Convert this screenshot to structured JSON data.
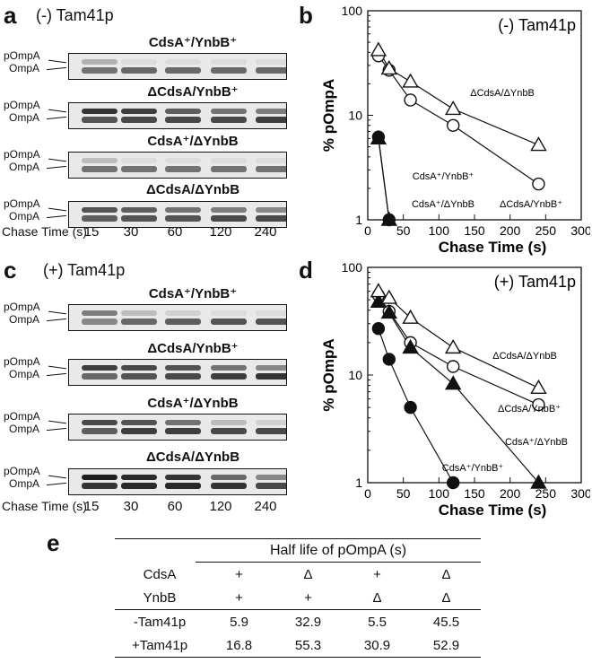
{
  "panels": {
    "a": {
      "letter": "a",
      "condition": "(-) Tam41p"
    },
    "b": {
      "letter": "b",
      "condition": "(-) Tam41p"
    },
    "c": {
      "letter": "c",
      "condition": "(+) Tam41p"
    },
    "d": {
      "letter": "d",
      "condition": "(+) Tam41p"
    },
    "e": {
      "letter": "e"
    }
  },
  "blots": {
    "lane_labels": {
      "top": "pOmpA",
      "bottom": "OmpA"
    },
    "chase_label": "Chase Time (s)",
    "times": [
      "15",
      "30",
      "60",
      "120",
      "240"
    ],
    "minus_tam41p": [
      {
        "title": "CdsA⁺/YnbB⁺",
        "band_intensity": {
          "pOmpA": [
            0.25,
            0.05,
            0.05,
            0.05,
            0.05
          ],
          "OmpA": [
            0.55,
            0.6,
            0.6,
            0.6,
            0.6
          ]
        }
      },
      {
        "title": "ΔCdsA/YnbB⁺",
        "band_intensity": {
          "pOmpA": [
            0.85,
            0.8,
            0.65,
            0.55,
            0.5
          ],
          "OmpA": [
            0.7,
            0.75,
            0.75,
            0.75,
            0.8
          ]
        }
      },
      {
        "title": "CdsA⁺/ΔYnbB",
        "band_intensity": {
          "pOmpA": [
            0.2,
            0.05,
            0.05,
            0.05,
            0.05
          ],
          "OmpA": [
            0.55,
            0.55,
            0.55,
            0.55,
            0.55
          ]
        }
      },
      {
        "title": "ΔCdsA/ΔYnbB",
        "band_intensity": {
          "pOmpA": [
            0.7,
            0.65,
            0.55,
            0.5,
            0.45
          ],
          "OmpA": [
            0.65,
            0.7,
            0.7,
            0.75,
            0.75
          ]
        }
      }
    ],
    "plus_tam41p": [
      {
        "title": "CdsA⁺/YnbB⁺",
        "band_intensity": {
          "pOmpA": [
            0.5,
            0.2,
            0.1,
            0.05,
            0.05
          ],
          "OmpA": [
            0.45,
            0.6,
            0.65,
            0.7,
            0.7
          ]
        }
      },
      {
        "title": "ΔCdsA/YnbB⁺",
        "band_intensity": {
          "pOmpA": [
            0.8,
            0.75,
            0.7,
            0.55,
            0.45
          ],
          "OmpA": [
            0.6,
            0.7,
            0.75,
            0.8,
            0.85
          ]
        }
      },
      {
        "title": "CdsA⁺/ΔYnbB",
        "band_intensity": {
          "pOmpA": [
            0.75,
            0.7,
            0.55,
            0.2,
            0.1
          ],
          "OmpA": [
            0.65,
            0.8,
            0.8,
            0.75,
            0.75
          ]
        }
      },
      {
        "title": "ΔCdsA/ΔYnbB",
        "band_intensity": {
          "pOmpA": [
            0.95,
            0.9,
            0.85,
            0.6,
            0.45
          ],
          "OmpA": [
            0.85,
            0.9,
            0.9,
            0.85,
            0.75
          ]
        }
      }
    ]
  },
  "chart_data": [
    {
      "type": "line",
      "panel": "b",
      "title": "(-) Tam41p",
      "xlabel": "Chase Time (s)",
      "ylabel": "% pOmpA",
      "xlim": [
        0,
        300
      ],
      "ylim": [
        1,
        100
      ],
      "yscale": "log",
      "xticks": [
        "0",
        "50",
        "100",
        "150",
        "200",
        "250",
        "300"
      ],
      "yticks": [
        "1",
        "10",
        "100"
      ],
      "series": [
        {
          "name": "CdsA⁺/YnbB⁺",
          "marker": "filled-circle",
          "x": [
            15,
            30
          ],
          "y": [
            6.2,
            1.0
          ]
        },
        {
          "name": "ΔCdsA/YnbB⁺",
          "marker": "open-circle",
          "x": [
            15,
            30,
            60,
            120,
            240
          ],
          "y": [
            37,
            27,
            14,
            8,
            2.2
          ]
        },
        {
          "name": "CdsA⁺/ΔYnbB",
          "marker": "filled-triangle",
          "x": [
            15,
            30
          ],
          "y": [
            6.0,
            1.0
          ]
        },
        {
          "name": "ΔCdsA/ΔYnbB",
          "marker": "open-triangle",
          "x": [
            15,
            30,
            60,
            120,
            240
          ],
          "y": [
            42,
            28,
            21,
            11.5,
            5.2
          ]
        }
      ],
      "annotations": [
        {
          "text": "ΔCdsA/ΔYnbB"
        },
        {
          "text": "CdsA⁺/YnbB⁺"
        },
        {
          "text": "CdsA⁺/ΔYnbB"
        },
        {
          "text": "ΔCdsA/YnbB⁺"
        }
      ]
    },
    {
      "type": "line",
      "panel": "d",
      "title": "(+) Tam41p",
      "xlabel": "Chase Time (s)",
      "ylabel": "% pOmpA",
      "xlim": [
        0,
        300
      ],
      "ylim": [
        1,
        100
      ],
      "yscale": "log",
      "xticks": [
        "0",
        "50",
        "100",
        "150",
        "200",
        "250",
        "300"
      ],
      "yticks": [
        "1",
        "10",
        "100"
      ],
      "series": [
        {
          "name": "CdsA⁺/YnbB⁺",
          "marker": "filled-circle",
          "x": [
            15,
            30,
            60,
            120
          ],
          "y": [
            27,
            14,
            5,
            1.0
          ]
        },
        {
          "name": "ΔCdsA/YnbB⁺",
          "marker": "open-circle",
          "x": [
            15,
            30,
            60,
            120,
            240
          ],
          "y": [
            55,
            39,
            20,
            12,
            5.3
          ]
        },
        {
          "name": "CdsA⁺/ΔYnbB",
          "marker": "filled-triangle",
          "x": [
            15,
            30,
            60,
            120,
            240
          ],
          "y": [
            48,
            38,
            18,
            8.3,
            1.0
          ]
        },
        {
          "name": "ΔCdsA/ΔYnbB",
          "marker": "open-triangle",
          "x": [
            15,
            30,
            60,
            120,
            240
          ],
          "y": [
            60,
            52,
            34,
            18,
            7.6
          ]
        }
      ],
      "annotations": [
        {
          "text": "ΔCdsA/ΔYnbB"
        },
        {
          "text": "ΔCdsA/YnbB⁺"
        },
        {
          "text": "CdsA⁺/ΔYnbB"
        },
        {
          "text": "CdsA⁺/YnbB⁺"
        }
      ]
    },
    {
      "type": "table",
      "panel": "e",
      "title": "Half life of pOmpA (s)",
      "columns": [
        "",
        "",
        "",
        "",
        ""
      ],
      "rows": [
        {
          "label": "CdsA",
          "cells": [
            "+",
            "Δ",
            "+",
            "Δ"
          ]
        },
        {
          "label": "YnbB",
          "cells": [
            "+",
            "+",
            "Δ",
            "Δ"
          ]
        },
        {
          "label": "-Tam41p",
          "cells": [
            "5.9",
            "32.9",
            "5.5",
            "45.5"
          ]
        },
        {
          "label": "+Tam41p",
          "cells": [
            "16.8",
            "55.3",
            "30.9",
            "52.9"
          ]
        }
      ]
    }
  ]
}
